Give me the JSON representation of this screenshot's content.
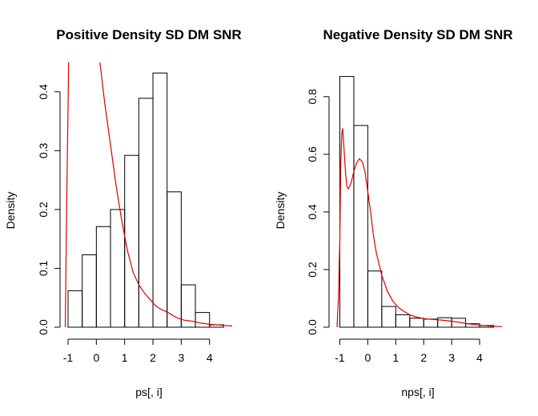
{
  "chart_data": [
    {
      "type": "histogram",
      "title": "Positive Density SD DM SNR",
      "xlabel": "ps[, i]",
      "ylabel": "Density",
      "xlim": [
        -1,
        4.8
      ],
      "ylim": [
        0,
        0.45
      ],
      "x_ticks": [
        "-1",
        "0",
        "1",
        "2",
        "3",
        "4"
      ],
      "y_ticks": [
        "0.0",
        "0.1",
        "0.2",
        "0.3",
        "0.4"
      ],
      "bins": [
        {
          "x0": -1.0,
          "x1": -0.5,
          "density": 0.062
        },
        {
          "x0": -0.5,
          "x1": 0.0,
          "density": 0.123
        },
        {
          "x0": 0.0,
          "x1": 0.5,
          "density": 0.171
        },
        {
          "x0": 0.5,
          "x1": 1.0,
          "density": 0.2
        },
        {
          "x0": 1.0,
          "x1": 1.5,
          "density": 0.292
        },
        {
          "x0": 1.5,
          "x1": 2.0,
          "density": 0.389
        },
        {
          "x0": 2.0,
          "x1": 2.5,
          "density": 0.432
        },
        {
          "x0": 2.5,
          "x1": 3.0,
          "density": 0.23
        },
        {
          "x0": 3.0,
          "x1": 3.5,
          "density": 0.072
        },
        {
          "x0": 3.5,
          "x1": 4.0,
          "density": 0.025
        },
        {
          "x0": 4.0,
          "x1": 4.5,
          "density": 0.004
        }
      ],
      "density_curve": {
        "color": "#dd0000",
        "points": [
          [
            -1.1,
            0.0
          ],
          [
            -1.08,
            0.08
          ],
          [
            -1.05,
            0.2
          ],
          [
            -1.02,
            0.31
          ],
          [
            -1.0,
            0.37
          ],
          [
            -0.98,
            0.45
          ],
          [
            0.1,
            0.46
          ],
          [
            0.2,
            0.42
          ],
          [
            0.3,
            0.38
          ],
          [
            0.5,
            0.31
          ],
          [
            0.7,
            0.24
          ],
          [
            0.9,
            0.18
          ],
          [
            1.1,
            0.13
          ],
          [
            1.3,
            0.093
          ],
          [
            1.5,
            0.072
          ],
          [
            1.7,
            0.058
          ],
          [
            1.9,
            0.047
          ],
          [
            2.1,
            0.036
          ],
          [
            2.3,
            0.03
          ],
          [
            2.5,
            0.026
          ],
          [
            2.7,
            0.02
          ],
          [
            2.9,
            0.015
          ],
          [
            3.1,
            0.012
          ],
          [
            3.4,
            0.01
          ],
          [
            3.7,
            0.007
          ],
          [
            4.0,
            0.005
          ],
          [
            4.3,
            0.004
          ],
          [
            4.5,
            0.003
          ],
          [
            4.8,
            0.002
          ]
        ]
      }
    },
    {
      "type": "histogram",
      "title": "Negative Density SD DM SNR",
      "xlabel": "nps[, i]",
      "ylabel": "Density",
      "xlim": [
        -1.1,
        4.8
      ],
      "ylim": [
        0,
        0.88
      ],
      "x_ticks": [
        "-1",
        "0",
        "1",
        "2",
        "3",
        "4"
      ],
      "y_ticks": [
        "0.0",
        "0.2",
        "0.4",
        "0.6",
        "0.8"
      ],
      "bins": [
        {
          "x0": -1.0,
          "x1": -0.5,
          "density": 0.87
        },
        {
          "x0": -0.5,
          "x1": 0.0,
          "density": 0.7
        },
        {
          "x0": 0.0,
          "x1": 0.5,
          "density": 0.195
        },
        {
          "x0": 0.5,
          "x1": 1.0,
          "density": 0.072
        },
        {
          "x0": 1.0,
          "x1": 1.5,
          "density": 0.043
        },
        {
          "x0": 1.5,
          "x1": 2.0,
          "density": 0.031
        },
        {
          "x0": 2.0,
          "x1": 2.5,
          "density": 0.028
        },
        {
          "x0": 2.5,
          "x1": 3.0,
          "density": 0.033
        },
        {
          "x0": 3.0,
          "x1": 3.5,
          "density": 0.031
        },
        {
          "x0": 3.5,
          "x1": 4.0,
          "density": 0.012
        },
        {
          "x0": 4.0,
          "x1": 4.5,
          "density": 0.006
        }
      ],
      "density_curve": {
        "color": "#dd0000",
        "points": [
          [
            -1.1,
            0.0
          ],
          [
            -1.05,
            0.1
          ],
          [
            -1.0,
            0.3
          ],
          [
            -0.97,
            0.55
          ],
          [
            -0.93,
            0.67
          ],
          [
            -0.9,
            0.69
          ],
          [
            -0.85,
            0.62
          ],
          [
            -0.8,
            0.54
          ],
          [
            -0.75,
            0.49
          ],
          [
            -0.7,
            0.48
          ],
          [
            -0.6,
            0.5
          ],
          [
            -0.5,
            0.54
          ],
          [
            -0.4,
            0.57
          ],
          [
            -0.3,
            0.585
          ],
          [
            -0.2,
            0.575
          ],
          [
            -0.1,
            0.54
          ],
          [
            0.0,
            0.47
          ],
          [
            0.1,
            0.4
          ],
          [
            0.2,
            0.32
          ],
          [
            0.3,
            0.26
          ],
          [
            0.5,
            0.18
          ],
          [
            0.7,
            0.125
          ],
          [
            0.9,
            0.09
          ],
          [
            1.1,
            0.068
          ],
          [
            1.3,
            0.055
          ],
          [
            1.5,
            0.043
          ],
          [
            1.7,
            0.036
          ],
          [
            2.0,
            0.03
          ],
          [
            2.3,
            0.027
          ],
          [
            2.6,
            0.025
          ],
          [
            2.9,
            0.022
          ],
          [
            3.2,
            0.018
          ],
          [
            3.5,
            0.013
          ],
          [
            3.8,
            0.009
          ],
          [
            4.1,
            0.006
          ],
          [
            4.4,
            0.004
          ],
          [
            4.8,
            0.002
          ]
        ]
      }
    }
  ]
}
